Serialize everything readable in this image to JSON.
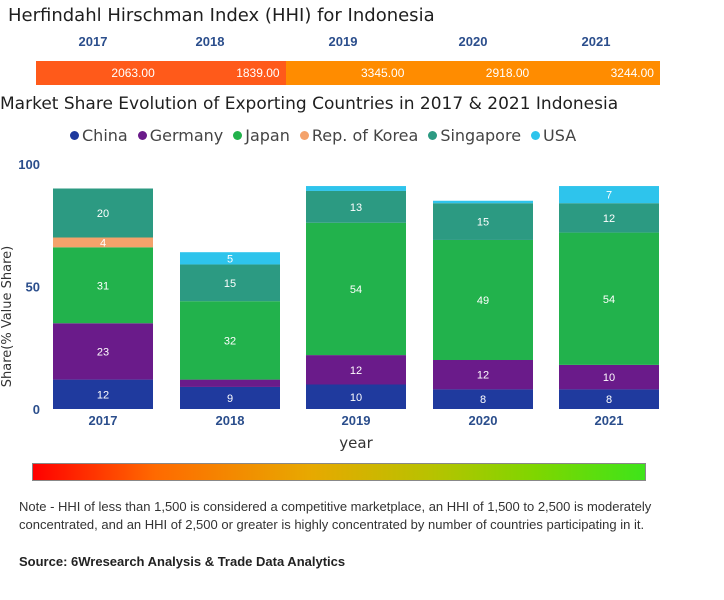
{
  "hhi": {
    "title": "Herfindahl Hirschman Index (HHI) for Indonesia",
    "years": [
      "2017",
      "2018",
      "2019",
      "2020",
      "2021"
    ],
    "values": [
      "2063.00",
      "1839.00",
      "3345.00",
      "2918.00",
      "3244.00"
    ],
    "colors": [
      "#ff5a1a",
      "#ff5a1a",
      "#ff8c00",
      "#ff8c00",
      "#ff8c00"
    ]
  },
  "chart_title": "Market Share Evolution of Exporting Countries in 2017 & 2021 Indonesia",
  "chart_data": {
    "type": "bar",
    "stacked": true,
    "categories": [
      "2017",
      "2018",
      "2019",
      "2020",
      "2021"
    ],
    "series": [
      {
        "name": "China",
        "color": "#1f3a9e",
        "values": [
          12,
          9,
          10,
          8,
          8
        ]
      },
      {
        "name": "Germany",
        "color": "#6a1b8a",
        "values": [
          23,
          3,
          12,
          12,
          10
        ]
      },
      {
        "name": "Japan",
        "color": "#22b24c",
        "values": [
          31,
          32,
          54,
          49,
          54
        ]
      },
      {
        "name": "Rep. of Korea",
        "color": "#f4a26b",
        "values": [
          4,
          0,
          0,
          0,
          0
        ]
      },
      {
        "name": "Singapore",
        "color": "#2c9a82",
        "values": [
          20,
          15,
          13,
          15,
          12
        ]
      },
      {
        "name": "USA",
        "color": "#2ec4ec",
        "values": [
          0,
          5,
          2,
          1,
          7
        ]
      }
    ],
    "labels": [
      [
        "12",
        "23",
        "31",
        "4",
        "20",
        ""
      ],
      [
        "9",
        "",
        "32",
        "",
        "15",
        "5"
      ],
      [
        "10",
        "12",
        "54",
        "",
        "13",
        ""
      ],
      [
        "8",
        "12",
        "49",
        "",
        "15",
        ""
      ],
      [
        "8",
        "10",
        "54",
        "",
        "12",
        "7"
      ]
    ],
    "xlabel": "year",
    "ylabel": "Share(% Value Share)",
    "ylim": [
      0,
      100
    ],
    "yticks": [
      "0",
      "50",
      "100"
    ]
  },
  "note": "Note - HHI of less than 1,500 is considered a competitive marketplace, an HHI of 1,500 to 2,500 is moderately concentrated, and an HHI of 2,500 or greater is highly concentrated by number of countries participating in it.",
  "source": "Source: 6Wresearch Analysis & Trade Data Analytics"
}
